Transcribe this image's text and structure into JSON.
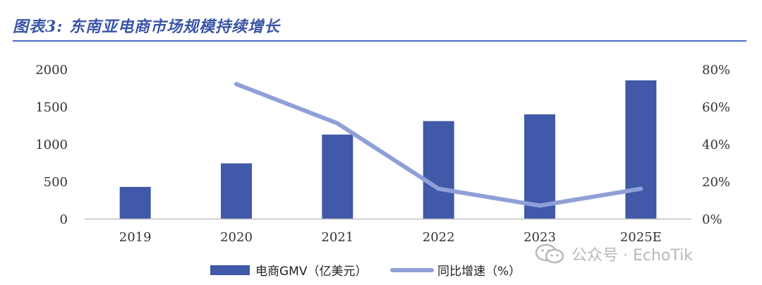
{
  "figure": {
    "title": "图表3: 东南亚电商市场规模持续增长",
    "watermark_text": "公众号 · EchoTik",
    "watermark_icon": "wechat-icon"
  },
  "chart_data": {
    "type": "bar",
    "categories": [
      "2019",
      "2020",
      "2021",
      "2022",
      "2023",
      "2025E"
    ],
    "series": [
      {
        "name": "电商GMV（亿美元）",
        "type": "bar",
        "axis": "left",
        "color": "#4059a8",
        "values": [
          425,
          740,
          1125,
          1305,
          1395,
          1850
        ]
      },
      {
        "name": "同比增速（%）",
        "type": "line",
        "axis": "right",
        "color": "#8f9fd8",
        "values": [
          null,
          72,
          51,
          16,
          7,
          16
        ]
      }
    ],
    "left_axis": {
      "ylim": [
        0,
        2000
      ],
      "ticks": [
        "0",
        "500",
        "1000",
        "1500",
        "2000"
      ]
    },
    "right_axis": {
      "ylim": [
        0,
        80
      ],
      "ticks": [
        "0%",
        "20%",
        "40%",
        "60%",
        "80%"
      ]
    },
    "grid": false,
    "legend_position": "bottom-center"
  }
}
